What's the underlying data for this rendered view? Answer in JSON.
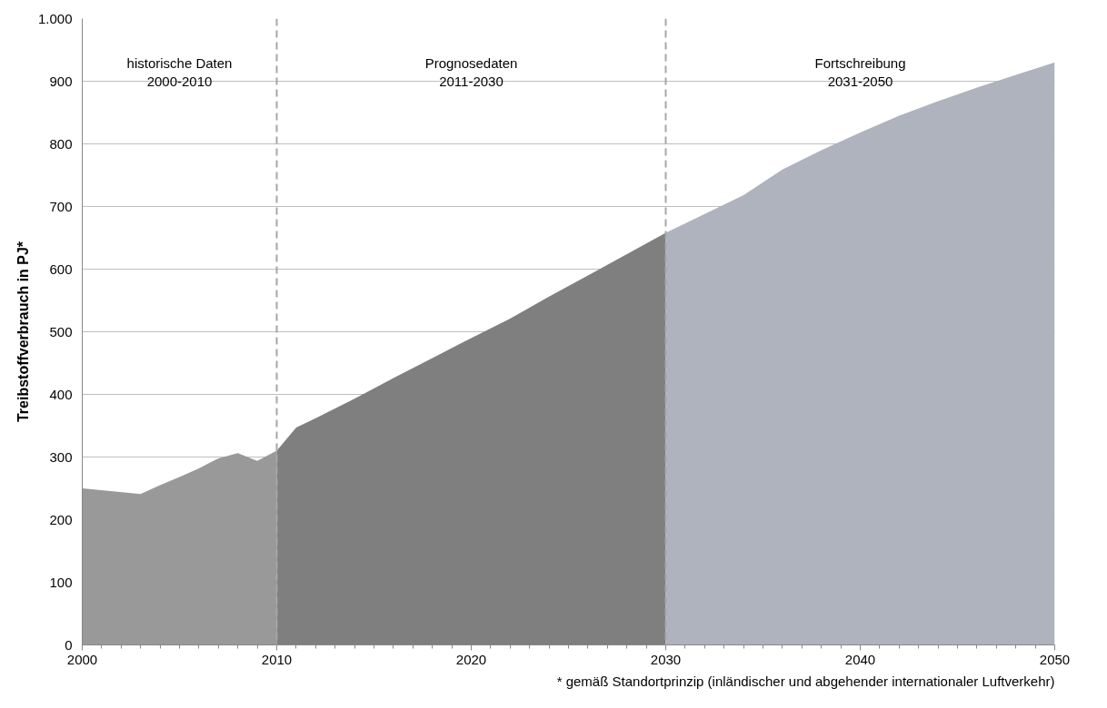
{
  "chart_data": {
    "type": "area",
    "ylabel": "Treibstoffverbrauch in PJ*",
    "xlim": [
      2000,
      2050
    ],
    "ylim": [
      0,
      1000
    ],
    "xticks": [
      2000,
      2010,
      2020,
      2030,
      2040,
      2050
    ],
    "yticks": [
      0,
      100,
      200,
      300,
      400,
      500,
      600,
      700,
      800,
      900,
      {
        "value": 1000,
        "label": "1.000"
      }
    ],
    "grid": "y",
    "series": [
      {
        "color": "#999999",
        "x": [
          2000,
          2003,
          2004,
          2005,
          2006,
          2007,
          2008,
          2009,
          2010
        ],
        "values": [
          250,
          241,
          255,
          268,
          282,
          298,
          306,
          294,
          310
        ]
      },
      {
        "color": "#7f7f7f",
        "x": [
          2010,
          2011,
          2012,
          2014,
          2016,
          2018,
          2020,
          2022,
          2024,
          2026,
          2028,
          2030
        ],
        "values": [
          310,
          347,
          362,
          393,
          426,
          458,
          490,
          521,
          556,
          590,
          624,
          658
        ]
      },
      {
        "color": "#aeb3bd",
        "x": [
          2030,
          2032,
          2034,
          2036,
          2038,
          2040,
          2042,
          2044,
          2046,
          2048,
          2050
        ],
        "values": [
          658,
          688,
          718,
          759,
          790,
          818,
          845,
          868,
          890,
          910,
          930
        ]
      }
    ],
    "ref_lines": [
      {
        "axis": "x",
        "value": 2010,
        "color": "#a6a6a6",
        "line_style": "dashed"
      },
      {
        "axis": "x",
        "value": 2030,
        "color": "#a6a6a6",
        "line_style": "dashed"
      }
    ],
    "annotations": [
      "historische Daten\n2000-2010",
      "Prognosedaten\n2011-2030",
      "Fortschreibung\n2031-2050",
      "* gemäß Standortprinzip (inländischer und abgehender internationaler Luftverkehr)"
    ]
  }
}
